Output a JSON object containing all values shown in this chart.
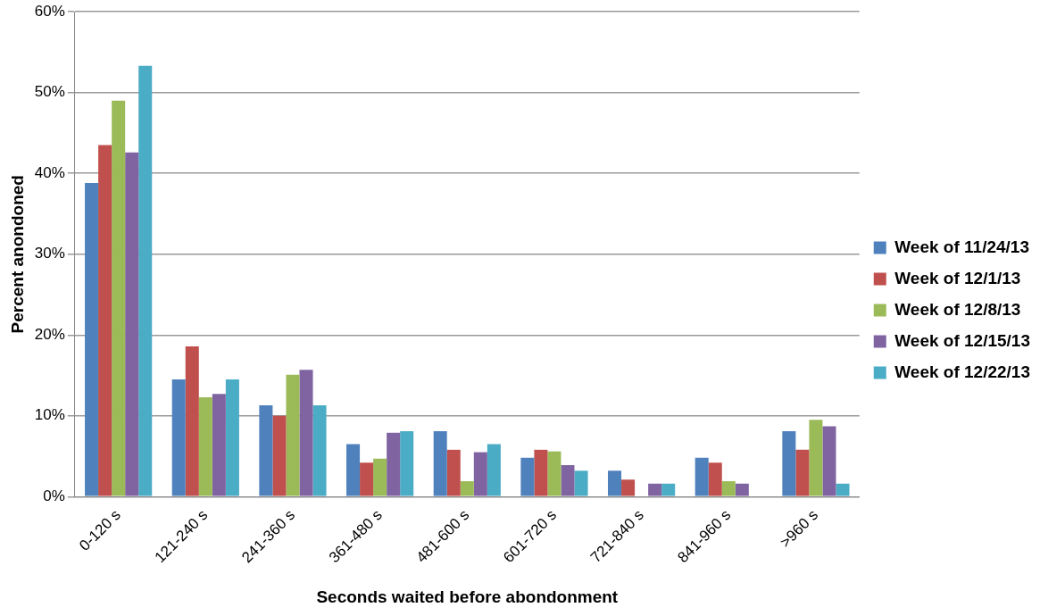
{
  "chart_data": {
    "type": "bar",
    "xlabel": "Seconds waited before abondonment",
    "ylabel": "Percent anondoned",
    "categories": [
      "0-120 s",
      "121-240 s",
      "241-360 s",
      "361-480 s",
      "481-600 s",
      "601-720 s",
      "721-840 s",
      "841-960 s",
      ">960 s"
    ],
    "series": [
      {
        "name": "Week of 11/24/13",
        "color": "#4f81bd",
        "values": [
          38.8,
          14.5,
          11.3,
          6.5,
          8.1,
          4.8,
          3.2,
          4.8,
          8.1
        ]
      },
      {
        "name": "Week of 12/1/13",
        "color": "#c0504d",
        "values": [
          43.5,
          18.6,
          10.0,
          4.2,
          5.8,
          5.8,
          2.1,
          4.2,
          5.8
        ]
      },
      {
        "name": "Week of 12/8/13",
        "color": "#9bbb59",
        "values": [
          49.0,
          12.3,
          15.1,
          4.7,
          1.9,
          5.6,
          0,
          1.9,
          9.5
        ]
      },
      {
        "name": "Week of 12/15/13",
        "color": "#8064a2",
        "values": [
          42.6,
          12.7,
          15.7,
          7.9,
          5.5,
          3.9,
          1.6,
          1.6,
          8.7
        ]
      },
      {
        "name": "Week of 12/22/13",
        "color": "#4bacc6",
        "values": [
          53.3,
          14.5,
          11.3,
          8.1,
          6.5,
          3.2,
          1.6,
          0,
          1.6
        ]
      }
    ],
    "ylim": [
      0,
      60
    ],
    "yticks": [
      {
        "value": 0,
        "label": "0%"
      },
      {
        "value": 10,
        "label": "10%"
      },
      {
        "value": 20,
        "label": "20%"
      },
      {
        "value": 30,
        "label": "30%"
      },
      {
        "value": 40,
        "label": "40%"
      },
      {
        "value": 50,
        "label": "50%"
      },
      {
        "value": 60,
        "label": "60%"
      }
    ],
    "grid": "y",
    "legend": "right"
  }
}
